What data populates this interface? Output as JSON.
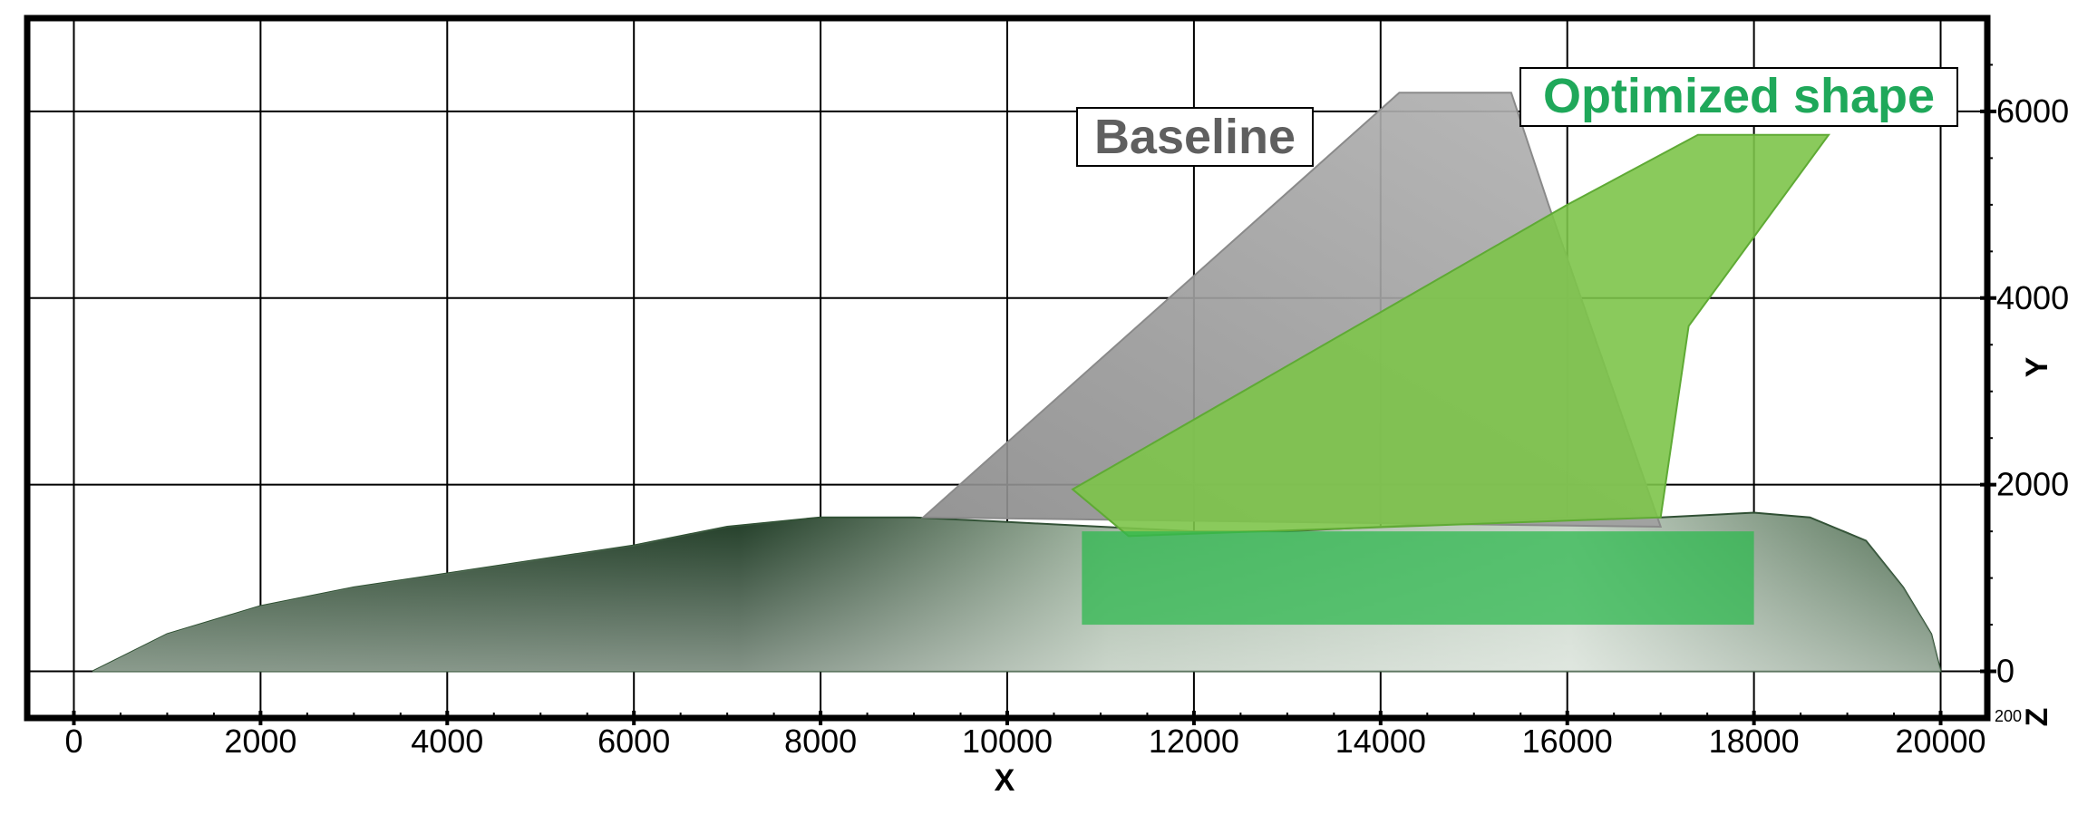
{
  "figure": {
    "x_axis_title": "X",
    "y_axis_title": "Y",
    "z_axis_title": "Z",
    "z_tick_label": "200"
  },
  "legend": {
    "baseline_label": "Baseline",
    "optimized_label": "Optimized shape"
  },
  "colors": {
    "baseline": "#a7a7a7",
    "optimized": "#7dc44a",
    "optimized_text": "#1fa85a",
    "baseline_text": "#5f5f5f",
    "fuselage_dark": "#1e3a24",
    "fuselage_light": "#c9d3c9",
    "grid": "#000000"
  },
  "chart_data": {
    "type": "diagram",
    "xlabel": "X",
    "ylabel": "Y",
    "xlim": [
      -500,
      20500
    ],
    "ylim": [
      -500,
      7000
    ],
    "x_ticks": [
      0,
      2000,
      4000,
      6000,
      8000,
      10000,
      12000,
      14000,
      16000,
      18000,
      20000
    ],
    "y_ticks": [
      0,
      2000,
      4000,
      6000
    ],
    "grid": true,
    "shapes": [
      {
        "name": "Baseline",
        "component": "wing",
        "outline_x": [
          9100,
          14200,
          15400,
          15800,
          17000,
          9100
        ],
        "outline_y": [
          1650,
          6200,
          6200,
          5000,
          1550,
          1650
        ]
      },
      {
        "name": "Optimized shape",
        "component": "wing",
        "outline_x": [
          10700,
          16000,
          17400,
          18800,
          17300,
          17000,
          11300,
          10700
        ],
        "outline_y": [
          1950,
          5000,
          5750,
          5750,
          3700,
          1650,
          1450,
          1950
        ]
      },
      {
        "name": "Fuselage",
        "component": "body",
        "outline_x": [
          200,
          1000,
          2000,
          3000,
          4000,
          5000,
          6000,
          7000,
          8000,
          9000,
          10000,
          11000,
          12000,
          13000,
          14000,
          15000,
          16000,
          17000,
          18000,
          18600,
          19200,
          19600,
          19900,
          20000,
          200
        ],
        "outline_y": [
          0,
          400,
          700,
          900,
          1050,
          1200,
          1350,
          1550,
          1650,
          1650,
          1600,
          1550,
          1500,
          1500,
          1550,
          1600,
          1650,
          1650,
          1700,
          1650,
          1400,
          900,
          400,
          0,
          0
        ]
      }
    ]
  }
}
